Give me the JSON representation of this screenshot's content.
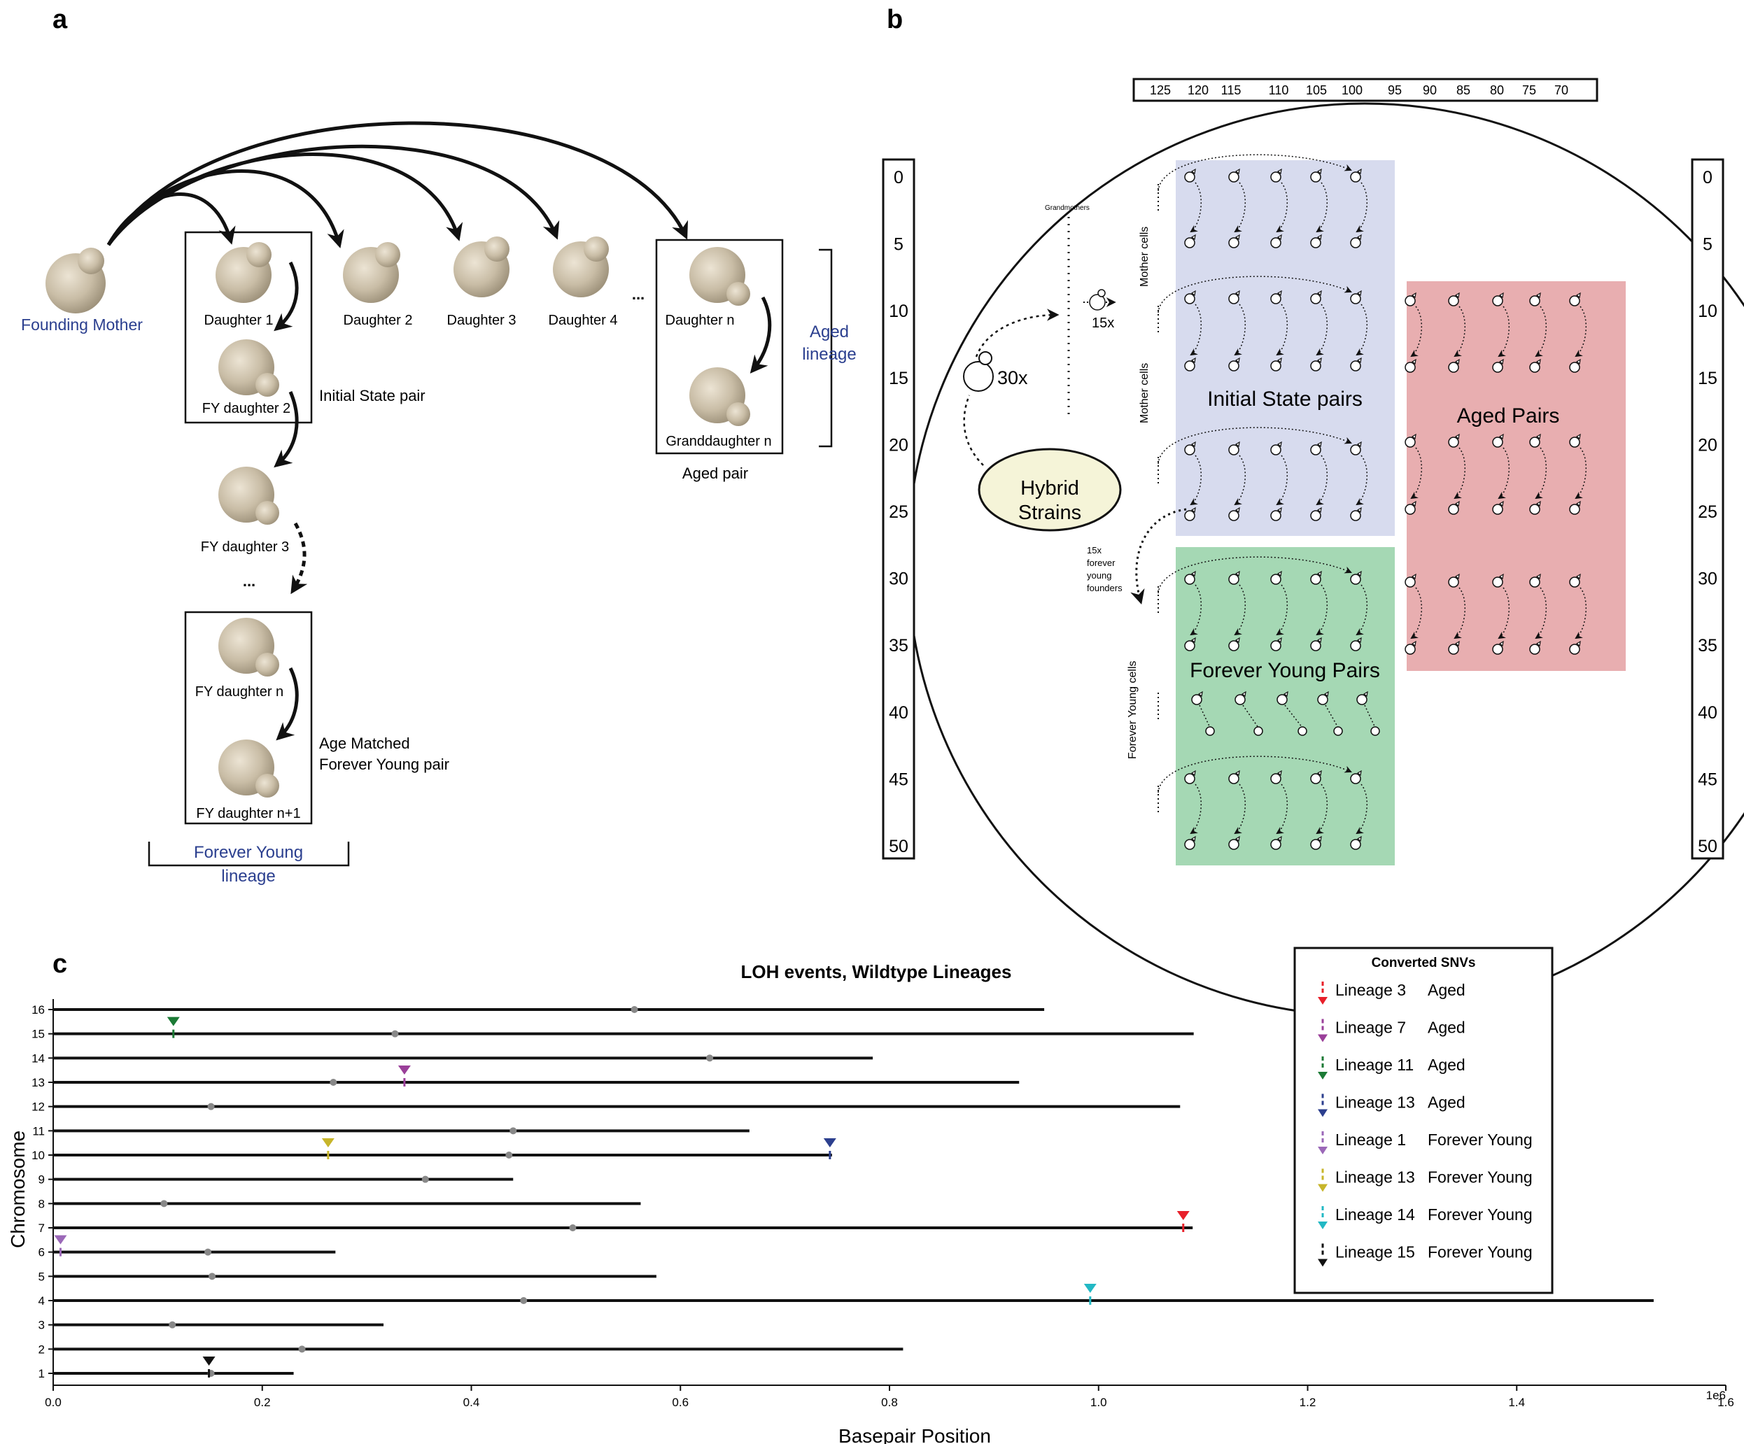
{
  "panel_a": {
    "label": "a",
    "founding_mother": "Founding Mother",
    "daughter_1": "Daughter 1",
    "daughter_2": "Daughter 2",
    "daughter_3": "Daughter 3",
    "daughter_4": "Daughter 4",
    "ellipsis": "...",
    "daughter_n": "Daughter n",
    "granddaughter_n": "Granddaughter n",
    "aged_pair": "Aged pair",
    "aged_lineage_1": "Aged",
    "aged_lineage_2": "lineage",
    "fy_daughter_2": "FY daughter 2",
    "initial_state_pair": "Initial State pair",
    "fy_daughter_3": "FY daughter 3",
    "ellipsis_2": "...",
    "fy_daughter_n": "FY daughter n",
    "fy_daughter_n1": "FY daughter n+1",
    "age_matched_1": "Age Matched",
    "age_matched_2": "Forever Young pair",
    "forever_young_lineage_1": "Forever Young",
    "forever_young_lineage_2": "lineage",
    "colors": {
      "lineage_text": "#2b3f8f",
      "cell": "#c9bda6"
    }
  },
  "panel_b": {
    "label": "b",
    "top_scale": [
      "125",
      "120",
      "115",
      "110",
      "105",
      "100",
      "95",
      "90",
      "85",
      "80",
      "75",
      "70"
    ],
    "side_scale": [
      "0",
      "5",
      "10",
      "15",
      "20",
      "25",
      "30",
      "35",
      "40",
      "45",
      "50"
    ],
    "grandmothers": "Grandmothers",
    "x15": "15x",
    "x30": "30x",
    "hybrid_1": "Hybrid",
    "hybrid_2": "Strains",
    "mother_cells_1": "Mother cells",
    "mother_cells_2": "Mother cells",
    "forever_young_cells": "Forever Young cells",
    "fy_founders_1": "15x",
    "fy_founders_2": "forever",
    "fy_founders_3": "young",
    "fy_founders_4": "founders",
    "initial_state_pairs": "Initial State pairs",
    "aged_pairs": "Aged Pairs",
    "forever_young_pairs": "Forever Young Pairs",
    "colors": {
      "initial": "#d7dbee",
      "aged": "#e8aeb0",
      "fy": "#a5d8b4",
      "hybrid": "#f5f4d8"
    }
  },
  "panel_c": {
    "label": "c",
    "chart_data": {
      "type": "scatter",
      "title": "LOH events,  Wildtype Lineages",
      "xlabel": "Basepair Position",
      "ylabel": "Chromosome",
      "x_multiplier": "1e6",
      "xlim": [
        0,
        1600000
      ],
      "ylim": [
        0.5,
        16.5
      ],
      "x_ticks": [
        "0.0",
        "0.2",
        "0.4",
        "0.6",
        "0.8",
        "1.0",
        "1.2",
        "1.4",
        "1.6"
      ],
      "y_ticks": [
        "1",
        "2",
        "3",
        "4",
        "5",
        "6",
        "7",
        "8",
        "9",
        "10",
        "11",
        "12",
        "13",
        "14",
        "15",
        "16"
      ],
      "chromosomes": [
        {
          "chr": 1,
          "length": 230000,
          "centromere": 151000
        },
        {
          "chr": 2,
          "length": 813000,
          "centromere": 238000
        },
        {
          "chr": 3,
          "length": 316000,
          "centromere": 114000
        },
        {
          "chr": 4,
          "length": 1531000,
          "centromere": 450000
        },
        {
          "chr": 5,
          "length": 577000,
          "centromere": 152000
        },
        {
          "chr": 6,
          "length": 270000,
          "centromere": 148000
        },
        {
          "chr": 7,
          "length": 1090000,
          "centromere": 497000
        },
        {
          "chr": 8,
          "length": 562000,
          "centromere": 106000
        },
        {
          "chr": 9,
          "length": 440000,
          "centromere": 356000
        },
        {
          "chr": 10,
          "length": 745000,
          "centromere": 436000
        },
        {
          "chr": 11,
          "length": 666000,
          "centromere": 440000
        },
        {
          "chr": 12,
          "length": 1078000,
          "centromere": 151000
        },
        {
          "chr": 13,
          "length": 924000,
          "centromere": 268000
        },
        {
          "chr": 14,
          "length": 784000,
          "centromere": 628000
        },
        {
          "chr": 15,
          "length": 1091000,
          "centromere": 327000
        },
        {
          "chr": 16,
          "length": 948000,
          "centromere": 556000
        }
      ],
      "series": [
        {
          "name": "Lineage 3",
          "group": "Aged",
          "color": "#e8202a",
          "points": [
            {
              "chr": 7,
              "x": 1081000
            }
          ]
        },
        {
          "name": "Lineage 7",
          "group": "Aged",
          "color": "#9a3f99",
          "points": [
            {
              "chr": 13,
              "x": 336000
            }
          ]
        },
        {
          "name": "Lineage 11",
          "group": "Aged",
          "color": "#1b7a35",
          "points": [
            {
              "chr": 15,
              "x": 115000
            }
          ]
        },
        {
          "name": "Lineage 13",
          "group": "Aged",
          "color": "#2c3f8e",
          "points": [
            {
              "chr": 10,
              "x": 743000
            }
          ]
        },
        {
          "name": "Lineage 1",
          "group": "Forever Young",
          "color": "#9b68b8",
          "points": [
            {
              "chr": 6,
              "x": 7000
            }
          ]
        },
        {
          "name": "Lineage 13",
          "group": "Forever Young",
          "color": "#c7b52a",
          "points": [
            {
              "chr": 10,
              "x": 263000
            }
          ]
        },
        {
          "name": "Lineage 14",
          "group": "Forever Young",
          "color": "#22b8c4",
          "points": [
            {
              "chr": 4,
              "x": 992000
            }
          ]
        },
        {
          "name": "Lineage 15",
          "group": "Forever Young",
          "color": "#111111",
          "points": [
            {
              "chr": 1,
              "x": 149000
            }
          ]
        }
      ],
      "legend": {
        "title": "Converted SNVs",
        "placement": "top-right"
      }
    }
  }
}
